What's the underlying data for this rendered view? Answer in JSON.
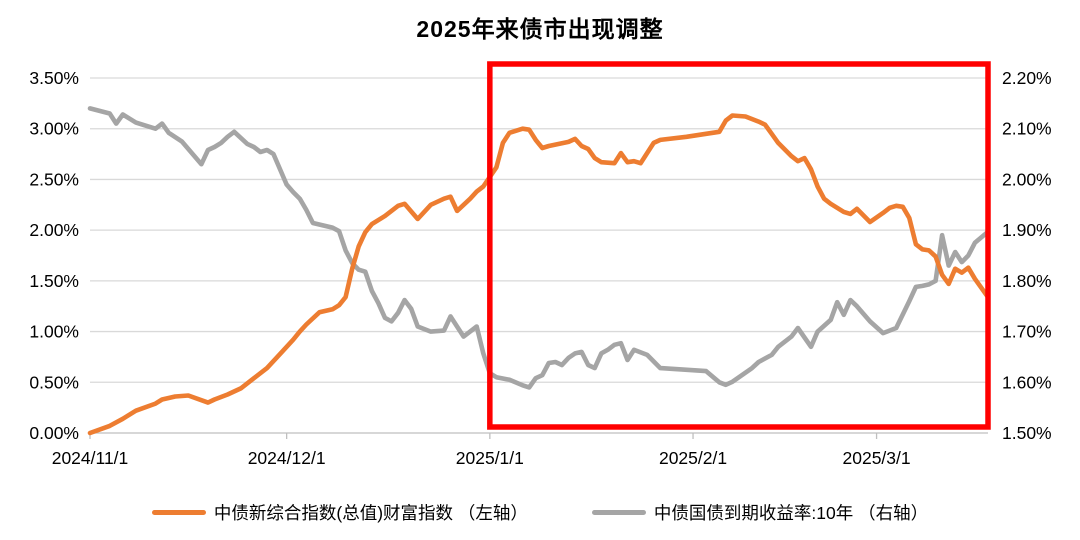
{
  "page": {
    "background": "#FFFFFF"
  },
  "chart_data": {
    "type": "line",
    "title": "2025年来债市出现调整",
    "legend_position": "bottom",
    "grid_on": true,
    "grid_color": "#D9D9D9",
    "axis_line_color": "#BFBFBF",
    "x_domain": [
      "2024-11-01",
      "2025-03-18"
    ],
    "x_axis": {
      "ticks": [
        {
          "date": "2024-11-01",
          "label": "2024/11/1"
        },
        {
          "date": "2024-12-01",
          "label": "2024/12/1"
        },
        {
          "date": "2025-01-01",
          "label": "2025/1/1"
        },
        {
          "date": "2025-02-01",
          "label": "2025/2/1"
        },
        {
          "date": "2025-03-01",
          "label": "2025/3/1"
        }
      ]
    },
    "left_axis": {
      "min": 0.0,
      "max": 3.5,
      "tick_step": 0.5,
      "tick_labels": [
        "0.00%",
        "0.50%",
        "1.00%",
        "1.50%",
        "2.00%",
        "2.50%",
        "3.00%",
        "3.50%"
      ]
    },
    "right_axis": {
      "min": 1.5,
      "max": 2.2,
      "tick_step": 0.1,
      "tick_labels": [
        "1.50%",
        "1.60%",
        "1.70%",
        "1.80%",
        "1.90%",
        "2.00%",
        "2.10%",
        "2.20%"
      ]
    },
    "highlight_box": {
      "start_date": "2025-01-01",
      "end_date": "2025-03-18",
      "color": "#FF0000"
    },
    "series": [
      {
        "name": "中债新综合指数(总值)财富指数 （左轴）",
        "axis": "left",
        "color": "#ED7D31",
        "points": [
          [
            "2024-11-01",
            0.0
          ],
          [
            "2024-11-04",
            0.07
          ],
          [
            "2024-11-06",
            0.14
          ],
          [
            "2024-11-08",
            0.22
          ],
          [
            "2024-11-11",
            0.29
          ],
          [
            "2024-11-12",
            0.33
          ],
          [
            "2024-11-14",
            0.36
          ],
          [
            "2024-11-16",
            0.37
          ],
          [
            "2024-11-19",
            0.3
          ],
          [
            "2024-11-20",
            0.33
          ],
          [
            "2024-11-22",
            0.38
          ],
          [
            "2024-11-24",
            0.44
          ],
          [
            "2024-11-26",
            0.54
          ],
          [
            "2024-11-28",
            0.64
          ],
          [
            "2024-11-30",
            0.78
          ],
          [
            "2024-12-02",
            0.92
          ],
          [
            "2024-12-03",
            1.0
          ],
          [
            "2024-12-04",
            1.07
          ],
          [
            "2024-12-06",
            1.19
          ],
          [
            "2024-12-08",
            1.22
          ],
          [
            "2024-12-09",
            1.26
          ],
          [
            "2024-12-10",
            1.34
          ],
          [
            "2024-12-11",
            1.62
          ],
          [
            "2024-12-12",
            1.84
          ],
          [
            "2024-12-13",
            1.98
          ],
          [
            "2024-12-14",
            2.06
          ],
          [
            "2024-12-16",
            2.14
          ],
          [
            "2024-12-18",
            2.24
          ],
          [
            "2024-12-19",
            2.26
          ],
          [
            "2024-12-21",
            2.11
          ],
          [
            "2024-12-23",
            2.25
          ],
          [
            "2024-12-25",
            2.31
          ],
          [
            "2024-12-26",
            2.33
          ],
          [
            "2024-12-27",
            2.19
          ],
          [
            "2024-12-29",
            2.31
          ],
          [
            "2024-12-30",
            2.38
          ],
          [
            "2024-12-31",
            2.43
          ],
          [
            "2025-01-02",
            2.62
          ],
          [
            "2025-01-03",
            2.86
          ],
          [
            "2025-01-04",
            2.96
          ],
          [
            "2025-01-06",
            3.0
          ],
          [
            "2025-01-07",
            2.99
          ],
          [
            "2025-01-08",
            2.89
          ],
          [
            "2025-01-09",
            2.81
          ],
          [
            "2025-01-10",
            2.83
          ],
          [
            "2025-01-13",
            2.87
          ],
          [
            "2025-01-14",
            2.9
          ],
          [
            "2025-01-15",
            2.83
          ],
          [
            "2025-01-16",
            2.8
          ],
          [
            "2025-01-17",
            2.71
          ],
          [
            "2025-01-18",
            2.67
          ],
          [
            "2025-01-20",
            2.66
          ],
          [
            "2025-01-21",
            2.76
          ],
          [
            "2025-01-22",
            2.67
          ],
          [
            "2025-01-23",
            2.68
          ],
          [
            "2025-01-24",
            2.66
          ],
          [
            "2025-01-26",
            2.86
          ],
          [
            "2025-01-27",
            2.89
          ],
          [
            "2025-01-31",
            2.92
          ],
          [
            "2025-02-03",
            2.95
          ],
          [
            "2025-02-05",
            2.97
          ],
          [
            "2025-02-06",
            3.08
          ],
          [
            "2025-02-07",
            3.13
          ],
          [
            "2025-02-09",
            3.12
          ],
          [
            "2025-02-11",
            3.07
          ],
          [
            "2025-02-12",
            3.04
          ],
          [
            "2025-02-13",
            2.95
          ],
          [
            "2025-02-14",
            2.86
          ],
          [
            "2025-02-16",
            2.73
          ],
          [
            "2025-02-17",
            2.68
          ],
          [
            "2025-02-18",
            2.71
          ],
          [
            "2025-02-19",
            2.6
          ],
          [
            "2025-02-20",
            2.43
          ],
          [
            "2025-02-21",
            2.31
          ],
          [
            "2025-02-22",
            2.26
          ],
          [
            "2025-02-24",
            2.18
          ],
          [
            "2025-02-25",
            2.16
          ],
          [
            "2025-02-26",
            2.21
          ],
          [
            "2025-02-28",
            2.08
          ],
          [
            "2025-03-02",
            2.17
          ],
          [
            "2025-03-03",
            2.22
          ],
          [
            "2025-03-04",
            2.24
          ],
          [
            "2025-03-05",
            2.23
          ],
          [
            "2025-03-06",
            2.12
          ],
          [
            "2025-03-07",
            1.86
          ],
          [
            "2025-03-08",
            1.81
          ],
          [
            "2025-03-09",
            1.8
          ],
          [
            "2025-03-10",
            1.74
          ],
          [
            "2025-03-11",
            1.56
          ],
          [
            "2025-03-12",
            1.47
          ],
          [
            "2025-03-13",
            1.62
          ],
          [
            "2025-03-14",
            1.58
          ],
          [
            "2025-03-15",
            1.63
          ],
          [
            "2025-03-16",
            1.52
          ],
          [
            "2025-03-18",
            1.34
          ]
        ]
      },
      {
        "name": "中债国债到期收益率:10年 （右轴）",
        "axis": "right",
        "color": "#A5A5A5",
        "points": [
          [
            "2024-11-01",
            2.14
          ],
          [
            "2024-11-04",
            2.13
          ],
          [
            "2024-11-05",
            2.11
          ],
          [
            "2024-11-06",
            2.128
          ],
          [
            "2024-11-08",
            2.112
          ],
          [
            "2024-11-11",
            2.1
          ],
          [
            "2024-11-12",
            2.11
          ],
          [
            "2024-11-13",
            2.092
          ],
          [
            "2024-11-15",
            2.075
          ],
          [
            "2024-11-18",
            2.03
          ],
          [
            "2024-11-19",
            2.058
          ],
          [
            "2024-11-20",
            2.064
          ],
          [
            "2024-11-21",
            2.072
          ],
          [
            "2024-11-22",
            2.084
          ],
          [
            "2024-11-23",
            2.094
          ],
          [
            "2024-11-25",
            2.07
          ],
          [
            "2024-11-26",
            2.064
          ],
          [
            "2024-11-27",
            2.054
          ],
          [
            "2024-11-28",
            2.058
          ],
          [
            "2024-11-29",
            2.05
          ],
          [
            "2024-12-01",
            1.99
          ],
          [
            "2024-12-02",
            1.975
          ],
          [
            "2024-12-03",
            1.962
          ],
          [
            "2024-12-04",
            1.94
          ],
          [
            "2024-12-05",
            1.914
          ],
          [
            "2024-12-08",
            1.905
          ],
          [
            "2024-12-09",
            1.898
          ],
          [
            "2024-12-10",
            1.86
          ],
          [
            "2024-12-11",
            1.835
          ],
          [
            "2024-12-12",
            1.822
          ],
          [
            "2024-12-13",
            1.818
          ],
          [
            "2024-12-14",
            1.78
          ],
          [
            "2024-12-15",
            1.756
          ],
          [
            "2024-12-16",
            1.727
          ],
          [
            "2024-12-17",
            1.72
          ],
          [
            "2024-12-18",
            1.737
          ],
          [
            "2024-12-19",
            1.762
          ],
          [
            "2024-12-20",
            1.745
          ],
          [
            "2024-12-21",
            1.71
          ],
          [
            "2024-12-23",
            1.7
          ],
          [
            "2024-12-25",
            1.702
          ],
          [
            "2024-12-26",
            1.73
          ],
          [
            "2024-12-28",
            1.69
          ],
          [
            "2024-12-30",
            1.71
          ],
          [
            "2024-12-31",
            1.657
          ],
          [
            "2025-01-01",
            1.618
          ],
          [
            "2025-01-02",
            1.61
          ],
          [
            "2025-01-04",
            1.605
          ],
          [
            "2025-01-06",
            1.594
          ],
          [
            "2025-01-07",
            1.59
          ],
          [
            "2025-01-08",
            1.608
          ],
          [
            "2025-01-09",
            1.614
          ],
          [
            "2025-01-10",
            1.638
          ],
          [
            "2025-01-11",
            1.64
          ],
          [
            "2025-01-12",
            1.634
          ],
          [
            "2025-01-13",
            1.648
          ],
          [
            "2025-01-14",
            1.657
          ],
          [
            "2025-01-15",
            1.66
          ],
          [
            "2025-01-16",
            1.634
          ],
          [
            "2025-01-17",
            1.628
          ],
          [
            "2025-01-18",
            1.657
          ],
          [
            "2025-01-19",
            1.664
          ],
          [
            "2025-01-20",
            1.674
          ],
          [
            "2025-01-21",
            1.677
          ],
          [
            "2025-01-22",
            1.644
          ],
          [
            "2025-01-23",
            1.664
          ],
          [
            "2025-01-25",
            1.654
          ],
          [
            "2025-01-27",
            1.628
          ],
          [
            "2025-02-03",
            1.622
          ],
          [
            "2025-02-05",
            1.6
          ],
          [
            "2025-02-06",
            1.595
          ],
          [
            "2025-02-07",
            1.601
          ],
          [
            "2025-02-10",
            1.628
          ],
          [
            "2025-02-11",
            1.64
          ],
          [
            "2025-02-13",
            1.654
          ],
          [
            "2025-02-14",
            1.67
          ],
          [
            "2025-02-16",
            1.69
          ],
          [
            "2025-02-17",
            1.707
          ],
          [
            "2025-02-19",
            1.67
          ],
          [
            "2025-02-20",
            1.7
          ],
          [
            "2025-02-22",
            1.723
          ],
          [
            "2025-02-23",
            1.758
          ],
          [
            "2025-02-24",
            1.733
          ],
          [
            "2025-02-25",
            1.762
          ],
          [
            "2025-02-26",
            1.75
          ],
          [
            "2025-02-28",
            1.72
          ],
          [
            "2025-03-02",
            1.697
          ],
          [
            "2025-03-04",
            1.707
          ],
          [
            "2025-03-06",
            1.76
          ],
          [
            "2025-03-07",
            1.788
          ],
          [
            "2025-03-08",
            1.79
          ],
          [
            "2025-03-09",
            1.793
          ],
          [
            "2025-03-10",
            1.8
          ],
          [
            "2025-03-11",
            1.89
          ],
          [
            "2025-03-12",
            1.83
          ],
          [
            "2025-03-13",
            1.857
          ],
          [
            "2025-03-14",
            1.837
          ],
          [
            "2025-03-15",
            1.85
          ],
          [
            "2025-03-16",
            1.875
          ],
          [
            "2025-03-18",
            1.897
          ]
        ]
      }
    ]
  }
}
